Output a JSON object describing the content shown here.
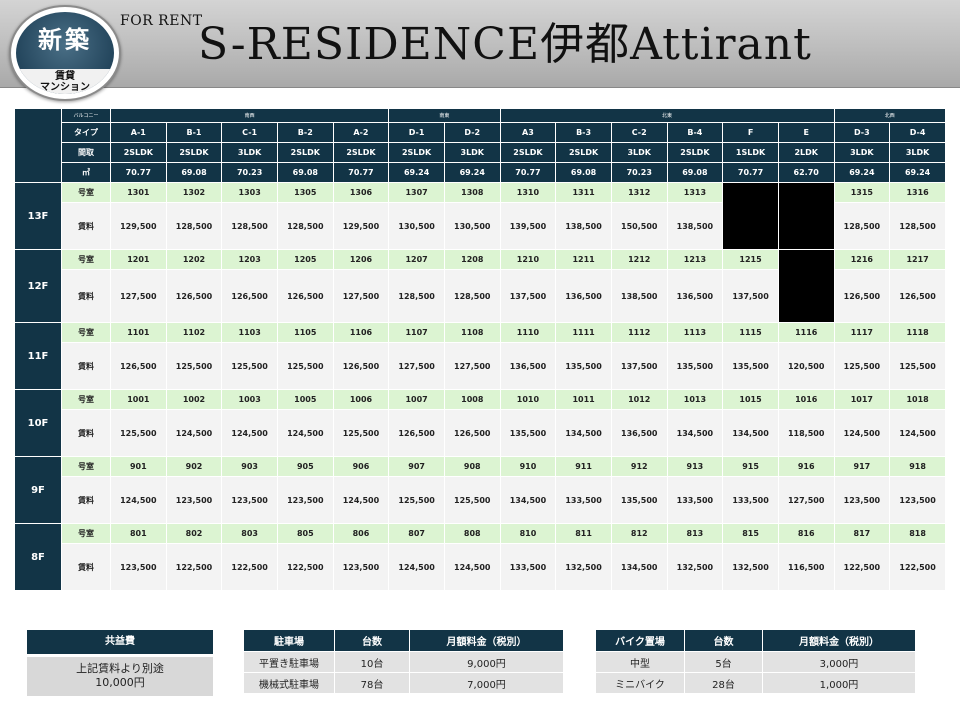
{
  "header": {
    "for_rent": "FOR RENT",
    "title": "S-RESIDENCE伊都Attirant",
    "badge_main": "新築",
    "badge_sub1": "賃貸",
    "badge_sub2": "マンション"
  },
  "table": {
    "balcony_label": "バルコニー",
    "direction_groups": [
      {
        "label": "南西",
        "span": 5
      },
      {
        "label": "南東",
        "span": 2
      },
      {
        "label": "北東",
        "span": 6
      },
      {
        "label": "北西",
        "span": 2
      }
    ],
    "type_label": "タイプ",
    "layout_label": "間取",
    "area_label": "㎡",
    "types": [
      "A-1",
      "B-1",
      "C-1",
      "B-2",
      "A-2",
      "D-1",
      "D-2",
      "A3",
      "B-3",
      "C-2",
      "B-4",
      "F",
      "E",
      "D-3",
      "D-4"
    ],
    "layouts": [
      "2SLDK",
      "2SLDK",
      "3LDK",
      "2SLDK",
      "2SLDK",
      "2SLDK",
      "3LDK",
      "2SLDK",
      "2SLDK",
      "3LDK",
      "2SLDK",
      "1SLDK",
      "2LDK",
      "3LDK",
      "3LDK"
    ],
    "areas": [
      "70.77",
      "69.08",
      "70.23",
      "69.08",
      "70.77",
      "69.24",
      "69.24",
      "70.77",
      "69.08",
      "70.23",
      "69.08",
      "70.77",
      "62.70",
      "69.24",
      "69.24"
    ],
    "room_label": "号室",
    "rent_label": "賃料",
    "floors": [
      {
        "label": "13F",
        "rooms": [
          "1301",
          "1302",
          "1303",
          "1305",
          "1306",
          "1307",
          "1308",
          "1310",
          "1311",
          "1312",
          "1313",
          "",
          "",
          "1315",
          "1316"
        ],
        "rents": [
          "129,500",
          "128,500",
          "128,500",
          "128,500",
          "129,500",
          "130,500",
          "130,500",
          "139,500",
          "138,500",
          "150,500",
          "138,500",
          "",
          "",
          "128,500",
          "128,500"
        ]
      },
      {
        "label": "12F",
        "rooms": [
          "1201",
          "1202",
          "1203",
          "1205",
          "1206",
          "1207",
          "1208",
          "1210",
          "1211",
          "1212",
          "1213",
          "1215",
          "",
          "1216",
          "1217"
        ],
        "rents": [
          "127,500",
          "126,500",
          "126,500",
          "126,500",
          "127,500",
          "128,500",
          "128,500",
          "137,500",
          "136,500",
          "138,500",
          "136,500",
          "137,500",
          "",
          "126,500",
          "126,500"
        ]
      },
      {
        "label": "11F",
        "rooms": [
          "1101",
          "1102",
          "1103",
          "1105",
          "1106",
          "1107",
          "1108",
          "1110",
          "1111",
          "1112",
          "1113",
          "1115",
          "1116",
          "1117",
          "1118"
        ],
        "rents": [
          "126,500",
          "125,500",
          "125,500",
          "125,500",
          "126,500",
          "127,500",
          "127,500",
          "136,500",
          "135,500",
          "137,500",
          "135,500",
          "135,500",
          "120,500",
          "125,500",
          "125,500"
        ]
      },
      {
        "label": "10F",
        "rooms": [
          "1001",
          "1002",
          "1003",
          "1005",
          "1006",
          "1007",
          "1008",
          "1010",
          "1011",
          "1012",
          "1013",
          "1015",
          "1016",
          "1017",
          "1018"
        ],
        "rents": [
          "125,500",
          "124,500",
          "124,500",
          "124,500",
          "125,500",
          "126,500",
          "126,500",
          "135,500",
          "134,500",
          "136,500",
          "134,500",
          "134,500",
          "118,500",
          "124,500",
          "124,500"
        ]
      },
      {
        "label": "9F",
        "rooms": [
          "901",
          "902",
          "903",
          "905",
          "906",
          "907",
          "908",
          "910",
          "911",
          "912",
          "913",
          "915",
          "916",
          "917",
          "918"
        ],
        "rents": [
          "124,500",
          "123,500",
          "123,500",
          "123,500",
          "124,500",
          "125,500",
          "125,500",
          "134,500",
          "133,500",
          "135,500",
          "133,500",
          "133,500",
          "127,500",
          "123,500",
          "123,500"
        ]
      },
      {
        "label": "8F",
        "rooms": [
          "801",
          "802",
          "803",
          "805",
          "806",
          "807",
          "808",
          "810",
          "811",
          "812",
          "813",
          "815",
          "816",
          "817",
          "818"
        ],
        "rents": [
          "123,500",
          "122,500",
          "122,500",
          "122,500",
          "123,500",
          "124,500",
          "124,500",
          "133,500",
          "132,500",
          "134,500",
          "132,500",
          "132,500",
          "116,500",
          "122,500",
          "122,500"
        ]
      }
    ]
  },
  "kyoeki": {
    "title": "共益費",
    "line1": "上記賃料より別途",
    "line2": "10,000円"
  },
  "parking": {
    "headers": [
      "駐車場",
      "台数",
      "月額料金（税別）"
    ],
    "rows": [
      [
        "平置き駐車場",
        "10台",
        "9,000円"
      ],
      [
        "機械式駐車場",
        "78台",
        "7,000円"
      ]
    ]
  },
  "bike": {
    "headers": [
      "バイク置場",
      "台数",
      "月額料金（税別）"
    ],
    "rows": [
      [
        "中型",
        "5台",
        "3,000円"
      ],
      [
        "ミニバイク",
        "28台",
        "1,000円"
      ]
    ]
  }
}
